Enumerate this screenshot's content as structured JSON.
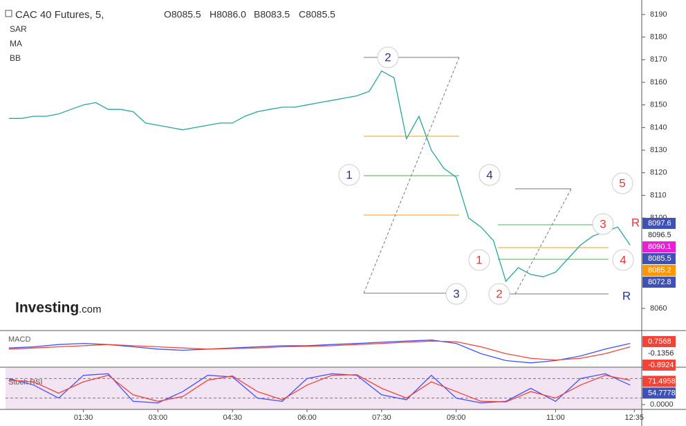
{
  "chart_data": [
    {
      "type": "line",
      "title": "CAC 40 Futures, 5,",
      "ohlc": [
        "O8085.5",
        "H8086.0",
        "B8083.5",
        "C8085.5"
      ],
      "indicators": [
        "SAR",
        "MA",
        "BB"
      ],
      "logo": [
        "Investing",
        ".com"
      ],
      "x": [
        0,
        15,
        30,
        45,
        60,
        75,
        90,
        105,
        120,
        135,
        150,
        165,
        180,
        195,
        210,
        225,
        240,
        255,
        270,
        285,
        300,
        315,
        330,
        345,
        360,
        375,
        390,
        405,
        420,
        435,
        450,
        465,
        480,
        495,
        510,
        525,
        540,
        555,
        570,
        585,
        600,
        615,
        630,
        645,
        660,
        675,
        690,
        705,
        720,
        735,
        750
      ],
      "values": [
        8144,
        8144,
        8145,
        8145,
        8146,
        8148,
        8150,
        8151,
        8148,
        8148,
        8147,
        8142,
        8141,
        8140,
        8139,
        8140,
        8141,
        8142,
        8142,
        8145,
        8147,
        8148,
        8149,
        8149,
        8150,
        8151,
        8152,
        8153,
        8154,
        8156,
        8165,
        8162,
        8135,
        8145,
        8130,
        8122,
        8118,
        8100,
        8096,
        8090,
        8072,
        8078,
        8075,
        8074,
        8076,
        8082,
        8088,
        8092,
        8094,
        8096,
        8088
      ],
      "color": "#26a69a",
      "xlim": [
        -4,
        764
      ],
      "xticks": [
        {
          "value": 90,
          "label": "01:30"
        },
        {
          "value": 180,
          "label": "03:00"
        },
        {
          "value": 270,
          "label": "04:30"
        },
        {
          "value": 360,
          "label": "06:00"
        },
        {
          "value": 450,
          "label": "07:30"
        },
        {
          "value": 540,
          "label": "09:00"
        },
        {
          "value": 660,
          "label": "11:00"
        },
        {
          "value": 755,
          "label": "12:35"
        }
      ],
      "ylim": [
        8050.2,
        8196.4
      ],
      "yticks": [
        8060,
        8100,
        8110,
        8120,
        8130,
        8140,
        8150,
        8160,
        8170,
        8180,
        8190
      ],
      "price_labels": {
        "values": [
          8097.6,
          8096.5,
          8090.1,
          8085.5,
          8085.2,
          8072.8
        ],
        "colors": [
          "#3f51b5",
          "#ffffff",
          "#e91ed6",
          "#3f51b5",
          "#ff9800",
          "#3f51b5"
        ]
      },
      "annotations": [
        {
          "text": "1",
          "color": "#283593"
        },
        {
          "text": "2",
          "color": "#283593"
        },
        {
          "text": "3",
          "color": "#283593"
        },
        {
          "text": "4",
          "color": "#283593"
        },
        {
          "text": "5",
          "color": "#e53935"
        },
        {
          "text": "1",
          "color": "#e53935"
        },
        {
          "text": "2",
          "color": "#e53935"
        },
        {
          "text": "3",
          "color": "#e53935"
        },
        {
          "text": "4",
          "color": "#e53935"
        },
        {
          "text": "R",
          "color": "#e53935"
        },
        {
          "text": "R",
          "color": "#283593"
        }
      ]
    },
    {
      "type": "line",
      "title": "MACD",
      "x": [
        0,
        30,
        60,
        90,
        120,
        150,
        180,
        210,
        240,
        270,
        300,
        330,
        360,
        390,
        420,
        450,
        480,
        510,
        540,
        570,
        600,
        630,
        660,
        690,
        720,
        750
      ],
      "series": [
        {
          "color": "#3f51ff",
          "values": [
            0.2,
            0.3,
            0.5,
            0.6,
            0.5,
            0.3,
            0.1,
            0.0,
            0.1,
            0.2,
            0.3,
            0.4,
            0.4,
            0.5,
            0.6,
            0.7,
            0.8,
            0.9,
            0.6,
            -0.3,
            -0.9,
            -1.1,
            -0.9,
            -0.5,
            0.1,
            0.6
          ]
        },
        {
          "color": "#f44336",
          "values": [
            0.1,
            0.2,
            0.3,
            0.4,
            0.5,
            0.4,
            0.3,
            0.2,
            0.1,
            0.15,
            0.2,
            0.3,
            0.35,
            0.4,
            0.5,
            0.6,
            0.7,
            0.8,
            0.75,
            0.3,
            -0.3,
            -0.7,
            -0.85,
            -0.7,
            -0.3,
            0.3
          ]
        }
      ],
      "xlim": [
        -4,
        764
      ],
      "ylim": [
        -1.3,
        1.6
      ],
      "price_labels": {
        "values": [
          0.7568,
          -0.1356,
          -0.8924
        ],
        "colors": [
          "#f44336",
          "#ffffff",
          "#f44336"
        ]
      }
    },
    {
      "type": "line",
      "title": "Stoch RSI",
      "x": [
        0,
        30,
        60,
        90,
        120,
        150,
        180,
        210,
        240,
        270,
        300,
        330,
        360,
        390,
        420,
        450,
        480,
        510,
        540,
        570,
        600,
        630,
        660,
        690,
        720,
        750
      ],
      "series": [
        {
          "color": "#3f51ff",
          "values": [
            80,
            60,
            20,
            90,
            95,
            10,
            5,
            40,
            90,
            85,
            20,
            10,
            80,
            95,
            90,
            30,
            15,
            90,
            20,
            5,
            10,
            50,
            10,
            80,
            95,
            60
          ]
        },
        {
          "color": "#f44336",
          "values": [
            75,
            70,
            35,
            70,
            90,
            30,
            10,
            25,
            75,
            88,
            40,
            15,
            60,
            90,
            92,
            50,
            20,
            70,
            40,
            10,
            8,
            40,
            20,
            60,
            90,
            75
          ]
        }
      ],
      "xlim": [
        -4,
        764
      ],
      "ylim": [
        0,
        100
      ],
      "bands": [
        20,
        80
      ],
      "yticks": [
        {
          "value": 0,
          "label": "0.0000"
        }
      ],
      "price_labels": {
        "values": [
          71.4958,
          54.7778
        ],
        "colors": [
          "#f44336",
          "#3f51b5"
        ]
      }
    }
  ]
}
